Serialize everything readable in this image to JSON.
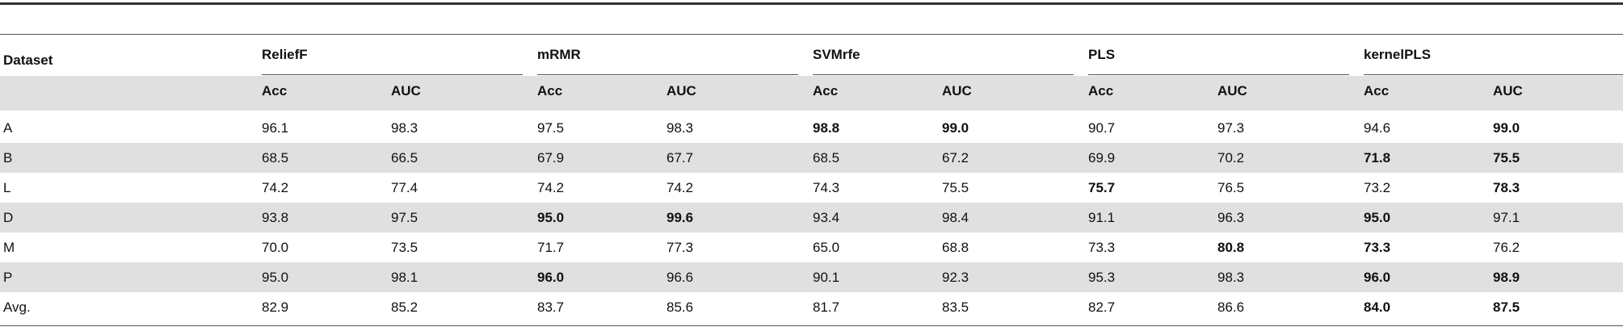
{
  "table": {
    "row_header": "Dataset",
    "groups": [
      {
        "name": "ReliefF",
        "columns": [
          "Acc",
          "AUC"
        ]
      },
      {
        "name": "mRMR",
        "columns": [
          "Acc",
          "AUC"
        ]
      },
      {
        "name": "SVMrfe",
        "columns": [
          "Acc",
          "AUC"
        ]
      },
      {
        "name": "PLS",
        "columns": [
          "Acc",
          "AUC"
        ]
      },
      {
        "name": "kernelPLS",
        "columns": [
          "Acc",
          "AUC"
        ]
      }
    ],
    "rows": [
      {
        "label": "A",
        "cells": [
          {
            "text": "96.1",
            "bold": false
          },
          {
            "text": "98.3",
            "bold": false
          },
          {
            "text": "97.5",
            "bold": false
          },
          {
            "text": "98.3",
            "bold": false
          },
          {
            "text": "98.8",
            "bold": true
          },
          {
            "text": "99.0",
            "bold": true
          },
          {
            "text": "90.7",
            "bold": false
          },
          {
            "text": "97.3",
            "bold": false
          },
          {
            "text": "94.6",
            "bold": false
          },
          {
            "text": "99.0",
            "bold": true
          }
        ]
      },
      {
        "label": "B",
        "cells": [
          {
            "text": "68.5",
            "bold": false
          },
          {
            "text": "66.5",
            "bold": false
          },
          {
            "text": "67.9",
            "bold": false
          },
          {
            "text": "67.7",
            "bold": false
          },
          {
            "text": "68.5",
            "bold": false
          },
          {
            "text": "67.2",
            "bold": false
          },
          {
            "text": "69.9",
            "bold": false
          },
          {
            "text": "70.2",
            "bold": false
          },
          {
            "text": "71.8",
            "bold": true
          },
          {
            "text": "75.5",
            "bold": true
          }
        ]
      },
      {
        "label": "L",
        "cells": [
          {
            "text": "74.2",
            "bold": false
          },
          {
            "text": "77.4",
            "bold": false
          },
          {
            "text": "74.2",
            "bold": false
          },
          {
            "text": "74.2",
            "bold": false
          },
          {
            "text": "74.3",
            "bold": false
          },
          {
            "text": "75.5",
            "bold": false
          },
          {
            "text": "75.7",
            "bold": true
          },
          {
            "text": "76.5",
            "bold": false
          },
          {
            "text": "73.2",
            "bold": false
          },
          {
            "text": "78.3",
            "bold": true
          }
        ]
      },
      {
        "label": "D",
        "cells": [
          {
            "text": "93.8",
            "bold": false
          },
          {
            "text": "97.5",
            "bold": false
          },
          {
            "text": "95.0",
            "bold": true
          },
          {
            "text": "99.6",
            "bold": true
          },
          {
            "text": "93.4",
            "bold": false
          },
          {
            "text": "98.4",
            "bold": false
          },
          {
            "text": "91.1",
            "bold": false
          },
          {
            "text": "96.3",
            "bold": false
          },
          {
            "text": "95.0",
            "bold": true
          },
          {
            "text": "97.1",
            "bold": false
          }
        ]
      },
      {
        "label": "M",
        "cells": [
          {
            "text": "70.0",
            "bold": false
          },
          {
            "text": "73.5",
            "bold": false
          },
          {
            "text": "71.7",
            "bold": false
          },
          {
            "text": "77.3",
            "bold": false
          },
          {
            "text": "65.0",
            "bold": false
          },
          {
            "text": "68.8",
            "bold": false
          },
          {
            "text": "73.3",
            "bold": false
          },
          {
            "text": "80.8",
            "bold": true
          },
          {
            "text": "73.3",
            "bold": true
          },
          {
            "text": "76.2",
            "bold": false
          }
        ]
      },
      {
        "label": "P",
        "cells": [
          {
            "text": "95.0",
            "bold": false
          },
          {
            "text": "98.1",
            "bold": false
          },
          {
            "text": "96.0",
            "bold": true
          },
          {
            "text": "96.6",
            "bold": false
          },
          {
            "text": "90.1",
            "bold": false
          },
          {
            "text": "92.3",
            "bold": false
          },
          {
            "text": "95.3",
            "bold": false
          },
          {
            "text": "98.3",
            "bold": false
          },
          {
            "text": "96.0",
            "bold": true
          },
          {
            "text": "98.9",
            "bold": true
          }
        ]
      },
      {
        "label": "Avg.",
        "cells": [
          {
            "text": "82.9",
            "bold": false
          },
          {
            "text": "85.2",
            "bold": false
          },
          {
            "text": "83.7",
            "bold": false
          },
          {
            "text": "85.6",
            "bold": false
          },
          {
            "text": "81.7",
            "bold": false
          },
          {
            "text": "83.5",
            "bold": false
          },
          {
            "text": "82.7",
            "bold": false
          },
          {
            "text": "86.6",
            "bold": false
          },
          {
            "text": "84.0",
            "bold": true
          },
          {
            "text": "87.5",
            "bold": true
          }
        ]
      }
    ]
  }
}
